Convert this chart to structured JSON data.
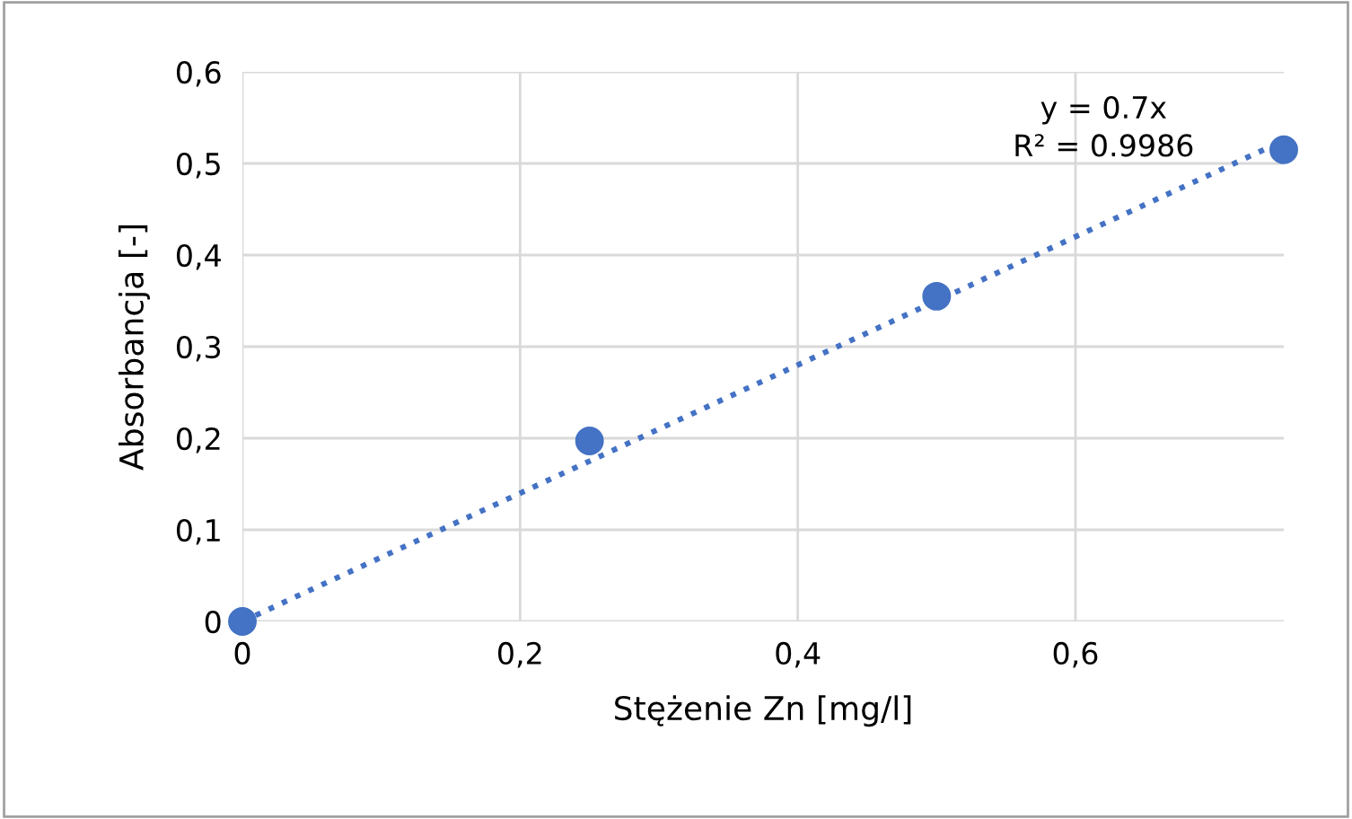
{
  "chart_data": {
    "type": "scatter",
    "xlabel": "Stężenie Zn [mg/l]",
    "ylabel": "Absorbancja [-]",
    "series": [
      {
        "color": "#4472c4",
        "marker": "circle",
        "x": [
          0,
          0.25,
          0.5,
          0.75
        ],
        "values": [
          0,
          0.197,
          0.355,
          0.515
        ]
      },
      {
        "type": "line",
        "color": "#4472c4",
        "line_style": "dotted",
        "marker": "none",
        "x": [
          0,
          0.75
        ],
        "values": [
          0,
          0.525
        ]
      }
    ],
    "annotations": [
      "y = 0.7x\nR² = 0.9986"
    ],
    "xlim": [
      0,
      0.75
    ],
    "ylim": [
      0,
      0.6
    ],
    "xticks": [
      0,
      {
        "value": 0.2,
        "label": "0,2"
      },
      {
        "value": 0.4,
        "label": "0,4"
      },
      {
        "value": 0.6,
        "label": "0,6"
      }
    ],
    "yticks": [
      0,
      {
        "value": 0.1,
        "label": "0,1"
      },
      {
        "value": 0.2,
        "label": "0,2"
      },
      {
        "value": 0.3,
        "label": "0,3"
      },
      {
        "value": 0.4,
        "label": "0,4"
      },
      {
        "value": 0.5,
        "label": "0,5"
      },
      {
        "value": 0.6,
        "label": "0,6"
      }
    ],
    "grid": true,
    "legend": false
  }
}
